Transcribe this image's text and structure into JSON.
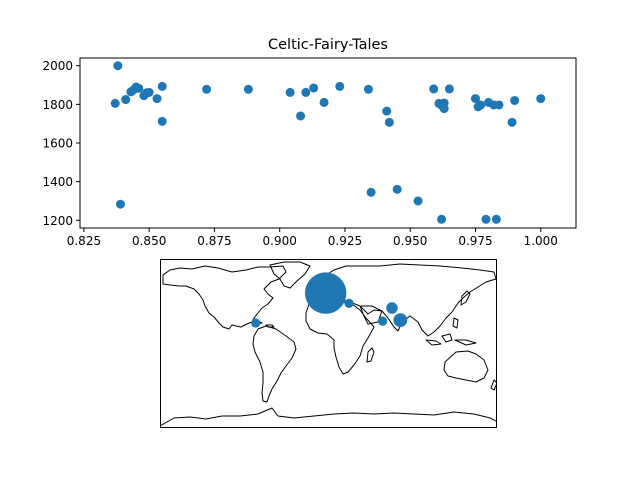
{
  "chart_data": [
    {
      "type": "scatter",
      "title": "Celtic-Fairy-Tales",
      "xlabel": "",
      "ylabel": "",
      "xlim": [
        0.8235,
        1.0135
      ],
      "ylim": [
        1160,
        2040
      ],
      "xticks": [
        "0.825",
        "0.850",
        "0.875",
        "0.900",
        "0.925",
        "0.950",
        "0.975",
        "1.000"
      ],
      "yticks": [
        "1200",
        "1400",
        "1600",
        "1800",
        "2000"
      ],
      "color": "#1f77b4",
      "grid": false,
      "points": [
        {
          "x": 0.838,
          "y": 2000
        },
        {
          "x": 0.837,
          "y": 1805
        },
        {
          "x": 0.839,
          "y": 1283
        },
        {
          "x": 0.841,
          "y": 1825
        },
        {
          "x": 0.843,
          "y": 1865
        },
        {
          "x": 0.844,
          "y": 1875
        },
        {
          "x": 0.845,
          "y": 1890
        },
        {
          "x": 0.846,
          "y": 1883
        },
        {
          "x": 0.848,
          "y": 1845
        },
        {
          "x": 0.849,
          "y": 1860
        },
        {
          "x": 0.85,
          "y": 1862
        },
        {
          "x": 0.853,
          "y": 1830
        },
        {
          "x": 0.855,
          "y": 1893
        },
        {
          "x": 0.855,
          "y": 1712
        },
        {
          "x": 0.872,
          "y": 1878
        },
        {
          "x": 0.888,
          "y": 1878
        },
        {
          "x": 0.904,
          "y": 1862
        },
        {
          "x": 0.908,
          "y": 1740
        },
        {
          "x": 0.91,
          "y": 1862
        },
        {
          "x": 0.913,
          "y": 1885
        },
        {
          "x": 0.917,
          "y": 1810
        },
        {
          "x": 0.923,
          "y": 1893
        },
        {
          "x": 0.934,
          "y": 1878
        },
        {
          "x": 0.935,
          "y": 1345
        },
        {
          "x": 0.941,
          "y": 1765
        },
        {
          "x": 0.942,
          "y": 1707
        },
        {
          "x": 0.945,
          "y": 1360
        },
        {
          "x": 0.953,
          "y": 1300
        },
        {
          "x": 0.959,
          "y": 1880
        },
        {
          "x": 0.961,
          "y": 1805
        },
        {
          "x": 0.962,
          "y": 1795
        },
        {
          "x": 0.963,
          "y": 1807
        },
        {
          "x": 0.963,
          "y": 1778
        },
        {
          "x": 0.962,
          "y": 1205
        },
        {
          "x": 0.965,
          "y": 1880
        },
        {
          "x": 0.975,
          "y": 1830
        },
        {
          "x": 0.976,
          "y": 1787
        },
        {
          "x": 0.977,
          "y": 1797
        },
        {
          "x": 0.979,
          "y": 1205
        },
        {
          "x": 0.98,
          "y": 1810
        },
        {
          "x": 0.982,
          "y": 1797
        },
        {
          "x": 0.983,
          "y": 1205
        },
        {
          "x": 0.984,
          "y": 1797
        },
        {
          "x": 0.989,
          "y": 1707
        },
        {
          "x": 0.99,
          "y": 1820
        },
        {
          "x": 1.0,
          "y": 1830
        }
      ]
    },
    {
      "type": "scatter",
      "subtype": "geographic-bubble-map",
      "projection": "plate-carree",
      "lonlim": [
        -180,
        180
      ],
      "latlim": [
        -90,
        90
      ],
      "color": "#1f77b4",
      "points": [
        {
          "lon": -3,
          "lat": 54,
          "size": 18
        },
        {
          "lon": 22,
          "lat": 43,
          "size": 4
        },
        {
          "lon": -78,
          "lat": 22,
          "size": 4
        },
        {
          "lon": 68,
          "lat": 38,
          "size": 5
        },
        {
          "lon": 58,
          "lat": 24,
          "size": 4
        },
        {
          "lon": 77,
          "lat": 25,
          "size": 6
        }
      ]
    }
  ]
}
